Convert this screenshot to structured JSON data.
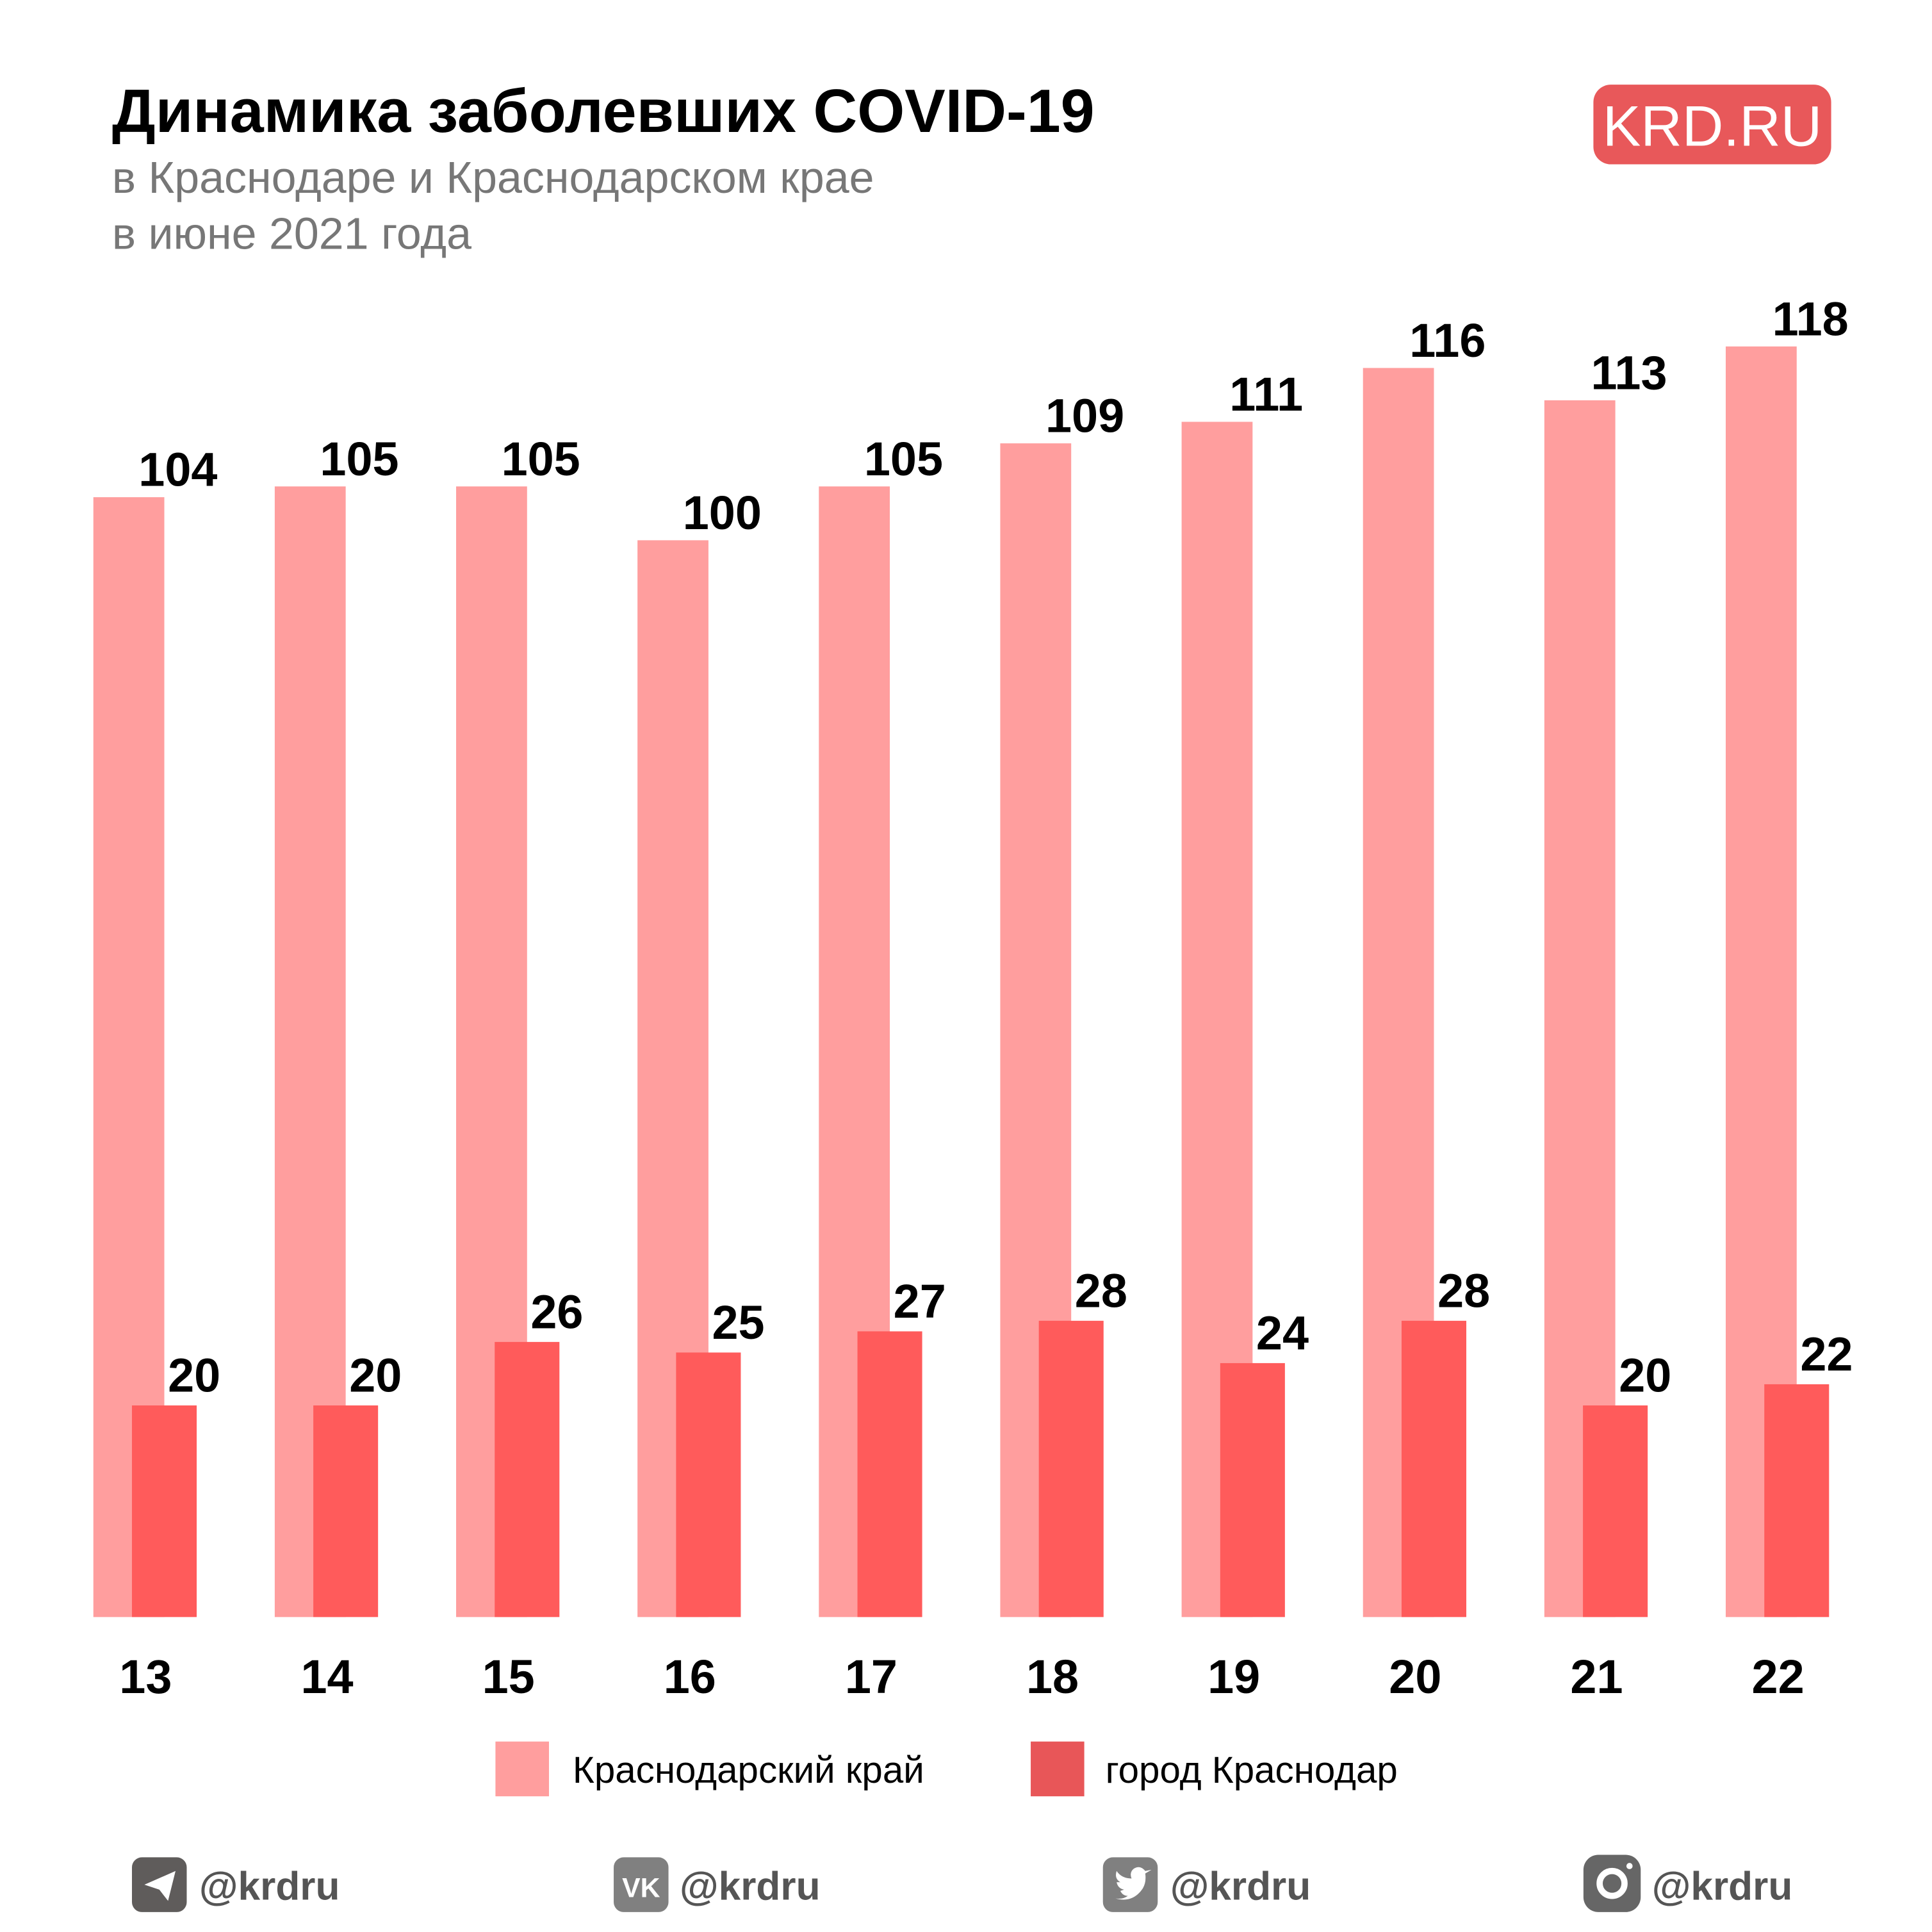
{
  "header": {
    "title": "Динамика заболевших COVID-19",
    "subtitle_line1": "в Краснодаре и Краснодарском крае",
    "subtitle_line2": "в июне 2021 года",
    "logo": "KRD.RU"
  },
  "colors": {
    "region": "#ff9e9e",
    "city": "#ff5b5b",
    "legend_city": "#e85658",
    "logo": "#e8585a",
    "social": "#666666"
  },
  "chart_data": {
    "type": "bar",
    "title": "Динамика заболевших COVID-19",
    "categories": [
      "13",
      "14",
      "15",
      "16",
      "17",
      "18",
      "19",
      "20",
      "21",
      "22"
    ],
    "series": [
      {
        "name": "Краснодарский край",
        "values": [
          104,
          105,
          105,
          100,
          105,
          109,
          111,
          116,
          113,
          118
        ]
      },
      {
        "name": "город Краснодар",
        "values": [
          20,
          20,
          26,
          25,
          27,
          28,
          24,
          28,
          20,
          22
        ]
      }
    ],
    "xlabel": "",
    "ylabel": "",
    "ylim": [
      0,
      120
    ],
    "grid": false,
    "legend_position": "bottom"
  },
  "legend": [
    "Краснодарский край",
    "город Краснодар"
  ],
  "social": [
    {
      "icon": "telegram-icon",
      "handle": "@krdru"
    },
    {
      "icon": "vk-icon",
      "handle": "@krdru"
    },
    {
      "icon": "twitter-icon",
      "handle": "@krdru"
    },
    {
      "icon": "instagram-icon",
      "handle": "@krdru"
    }
  ]
}
